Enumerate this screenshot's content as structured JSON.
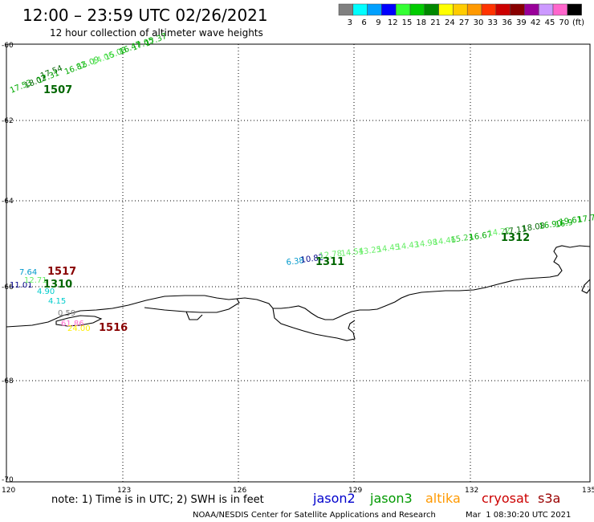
{
  "header": {
    "title": "12:00 – 23:59 UTC 02/26/2021",
    "subtitle": "12 hour collection of altimeter wave heights"
  },
  "legend": {
    "unit": "(ft)",
    "bins": [
      {
        "label": "3",
        "color": "#808080"
      },
      {
        "label": "6",
        "color": "#00ffff"
      },
      {
        "label": "9",
        "color": "#00a0ff"
      },
      {
        "label": "12",
        "color": "#0000ff"
      },
      {
        "label": "15",
        "color": "#33ff33"
      },
      {
        "label": "18",
        "color": "#00cc00"
      },
      {
        "label": "21",
        "color": "#008800"
      },
      {
        "label": "24",
        "color": "#ffff00"
      },
      {
        "label": "27",
        "color": "#ffcc00"
      },
      {
        "label": "30",
        "color": "#ff9900"
      },
      {
        "label": "33",
        "color": "#ff3300"
      },
      {
        "label": "36",
        "color": "#cc0000"
      },
      {
        "label": "39",
        "color": "#880000"
      },
      {
        "label": "42",
        "color": "#990099"
      },
      {
        "label": "45",
        "color": "#cc99ff"
      },
      {
        "label": "70",
        "color": "#ff66cc"
      },
      {
        "label": "",
        "color": "#000000"
      }
    ]
  },
  "axes": {
    "lat_labels": [
      "-60",
      "-62",
      "-64",
      "-66",
      "-68",
      "-70"
    ],
    "lon_labels": [
      "120",
      "123",
      "126",
      "129",
      "132",
      "135"
    ]
  },
  "footer": {
    "note": "note: 1) Time is in UTC; 2) SWH is in feet",
    "satellites": [
      {
        "name": "jason2",
        "color": "#0000cc"
      },
      {
        "name": "jason3",
        "color": "#009900"
      },
      {
        "name": "altika",
        "color": "#ff9900"
      },
      {
        "name": "cryosat",
        "color": "#cc0000"
      },
      {
        "name": "s3a",
        "color": "#990000"
      }
    ],
    "credit": "NOAA/NESDIS Center for Satellite Applications and Research",
    "timestamp": "Mar  1 08:30:20 UTC 2021"
  },
  "tracks": [
    {
      "time": "1507",
      "time_color": "#006600",
      "points": [
        {
          "v": "17.53",
          "c": "#00aa00"
        },
        {
          "v": "18.02",
          "c": "#006600"
        },
        {
          "v": "17.31",
          "c": "#00aa00"
        },
        {
          "v": "17.54",
          "c": "#006600"
        },
        {
          "v": "16.82",
          "c": "#00aa00"
        },
        {
          "v": "15.09",
          "c": "#33cc33"
        },
        {
          "v": "14.06",
          "c": "#66ee66"
        },
        {
          "v": "15.08",
          "c": "#33cc33"
        },
        {
          "v": "16.47",
          "c": "#00aa00"
        },
        {
          "v": "17.05",
          "c": "#00aa00"
        },
        {
          "v": "17.37",
          "c": "#00aa00"
        }
      ]
    },
    {
      "time": "1311",
      "time_color": "#006600",
      "points": [
        {
          "v": "6.38",
          "c": "#0099cc"
        },
        {
          "v": "10.82",
          "c": "#000088"
        },
        {
          "v": "12.78",
          "c": "#66ee66"
        },
        {
          "v": "14.54",
          "c": "#66ee66"
        },
        {
          "v": "13.25",
          "c": "#66ee66"
        },
        {
          "v": "14.45",
          "c": "#66ee66"
        },
        {
          "v": "14.43",
          "c": "#66ee66"
        },
        {
          "v": "14.98",
          "c": "#66ee66"
        },
        {
          "v": "14.46",
          "c": "#66ee66"
        }
      ]
    },
    {
      "time": "1312",
      "time_color": "#006600",
      "points": [
        {
          "v": "15.21",
          "c": "#33cc33"
        },
        {
          "v": "16.67",
          "c": "#00aa00"
        },
        {
          "v": "14.22",
          "c": "#66ee66"
        },
        {
          "v": "17.11",
          "c": "#006600"
        },
        {
          "v": "18.08",
          "c": "#006600"
        },
        {
          "v": "16.90",
          "c": "#00aa00"
        },
        {
          "v": "16.9",
          "c": "#00aa00"
        },
        {
          "v": "19.61",
          "c": "#00aa00"
        },
        {
          "v": "17.7",
          "c": "#00aa00"
        }
      ]
    },
    {
      "time": "1517",
      "time_color": "#880000",
      "points": [
        {
          "v": "7.64",
          "c": "#0099cc"
        }
      ]
    },
    {
      "time": "1310",
      "time_color": "#006600",
      "points": [
        {
          "v": "11.01",
          "c": "#000088"
        },
        {
          "v": "12.71",
          "c": "#66ee66"
        },
        {
          "v": "4.90",
          "c": "#00cccc"
        },
        {
          "v": "4.15",
          "c": "#00cccc"
        }
      ]
    },
    {
      "time": "1516",
      "time_color": "#880000",
      "points": [
        {
          "v": "0.59",
          "c": "#808080"
        },
        {
          "v": "61.86",
          "c": "#ff66cc"
        },
        {
          "v": "24.00",
          "c": "#ffee00"
        }
      ]
    }
  ]
}
